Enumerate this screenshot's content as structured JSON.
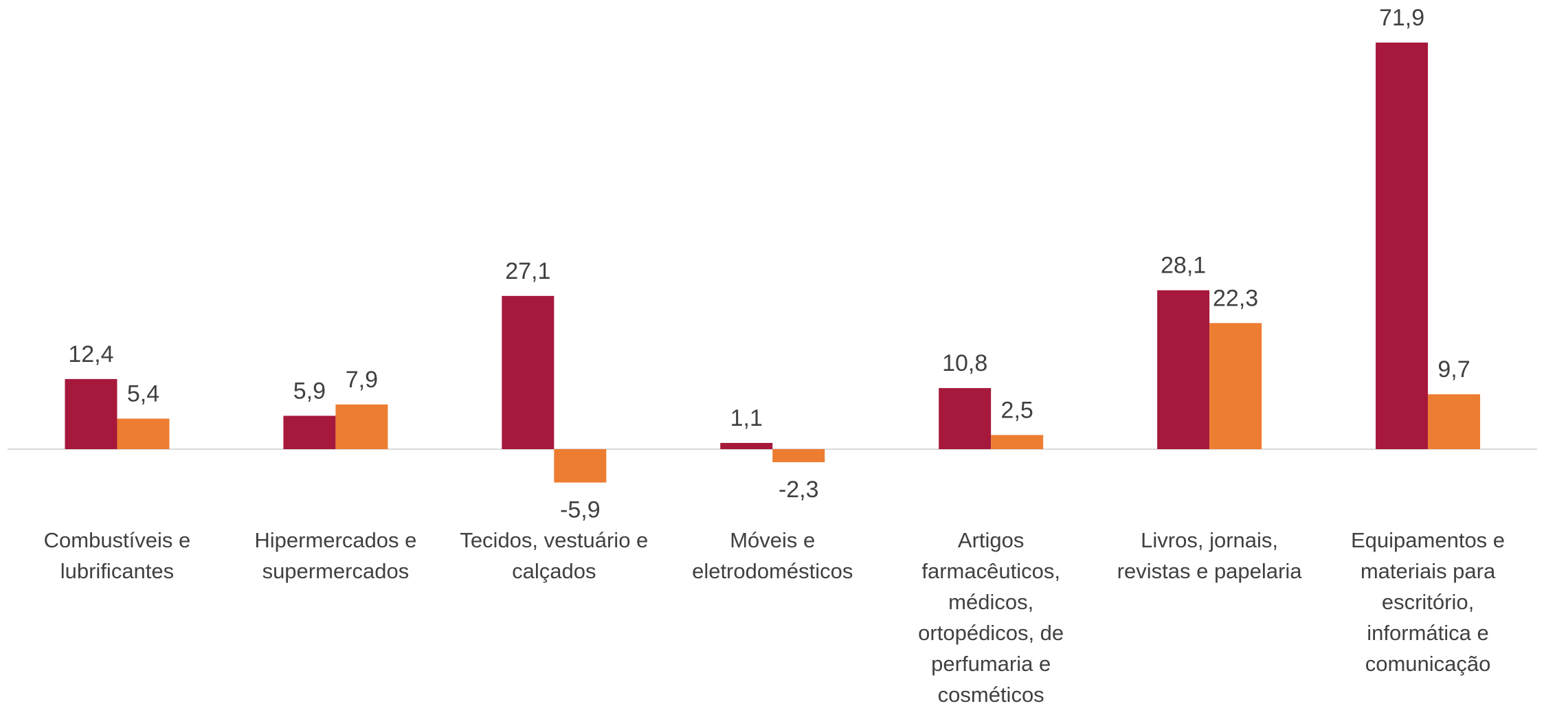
{
  "chart_data": {
    "type": "bar",
    "categories": [
      "Combustíveis e lubrificantes",
      "Hipermercados e supermercados",
      "Tecidos, vestuário e calçados",
      "Móveis e eletrodomésticos",
      "Artigos farmacêuticos, médicos, ortopédicos, de perfumaria e cosméticos",
      "Livros, jornais, revistas e papelaria",
      "Equipamentos e materiais para escritório, informática e comunicação"
    ],
    "series": [
      {
        "color": "#a6193c",
        "values": [
          12.4,
          5.9,
          27.1,
          1.1,
          10.8,
          28.1,
          71.9
        ],
        "value_labels": [
          "12,4",
          "5,9",
          "27,1",
          "1,1",
          "10,8",
          "28,1",
          "71,9"
        ]
      },
      {
        "color": "#ed7d31",
        "values": [
          5.4,
          7.9,
          -5.9,
          -2.3,
          2.5,
          22.3,
          9.7
        ],
        "value_labels": [
          "5,4",
          "7,9",
          "-5,9",
          "-2,3",
          "2,5",
          "22,3",
          "9,7"
        ]
      }
    ]
  }
}
